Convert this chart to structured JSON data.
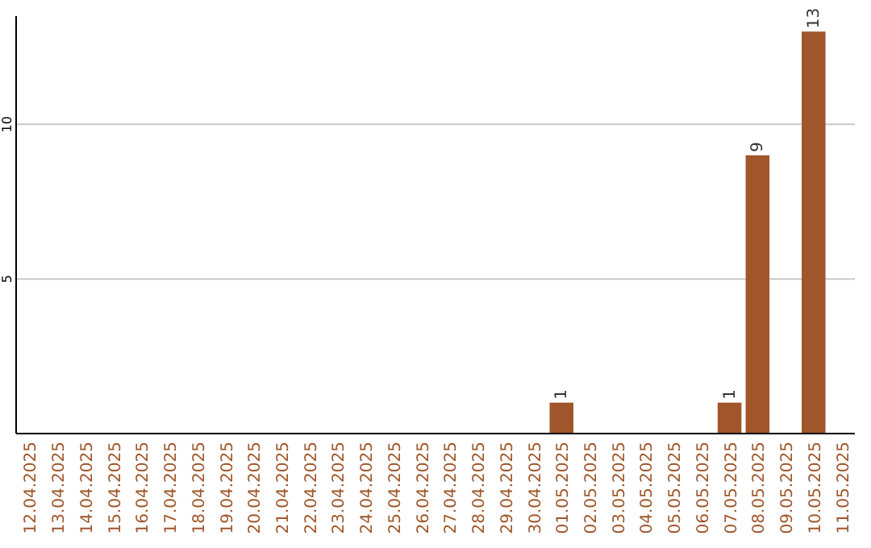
{
  "chart_data": {
    "type": "bar",
    "categories": [
      "12.04.2025",
      "13.04.2025",
      "14.04.2025",
      "15.04.2025",
      "16.04.2025",
      "17.04.2025",
      "18.04.2025",
      "19.04.2025",
      "20.04.2025",
      "21.04.2025",
      "22.04.2025",
      "23.04.2025",
      "24.04.2025",
      "25.04.2025",
      "26.04.2025",
      "27.04.2025",
      "28.04.2025",
      "29.04.2025",
      "30.04.2025",
      "01.05.2025",
      "02.05.2025",
      "03.05.2025",
      "04.05.2025",
      "05.05.2025",
      "06.05.2025",
      "07.05.2025",
      "08.05.2025",
      "09.05.2025",
      "10.05.2025",
      "11.05.2025"
    ],
    "values": [
      0,
      0,
      0,
      0,
      0,
      0,
      0,
      0,
      0,
      0,
      0,
      0,
      0,
      0,
      0,
      0,
      0,
      0,
      0,
      1,
      0,
      0,
      0,
      0,
      0,
      1,
      9,
      0,
      13,
      0
    ],
    "value_labels": [
      null,
      null,
      null,
      null,
      null,
      null,
      null,
      null,
      null,
      null,
      null,
      null,
      null,
      null,
      null,
      null,
      null,
      null,
      null,
      "1",
      null,
      null,
      null,
      null,
      null,
      "1",
      "9",
      null,
      "13",
      null
    ],
    "color": "#a0562a",
    "ylim": [
      0,
      13.5
    ],
    "yticks": [
      5,
      10
    ],
    "grid": "y"
  }
}
